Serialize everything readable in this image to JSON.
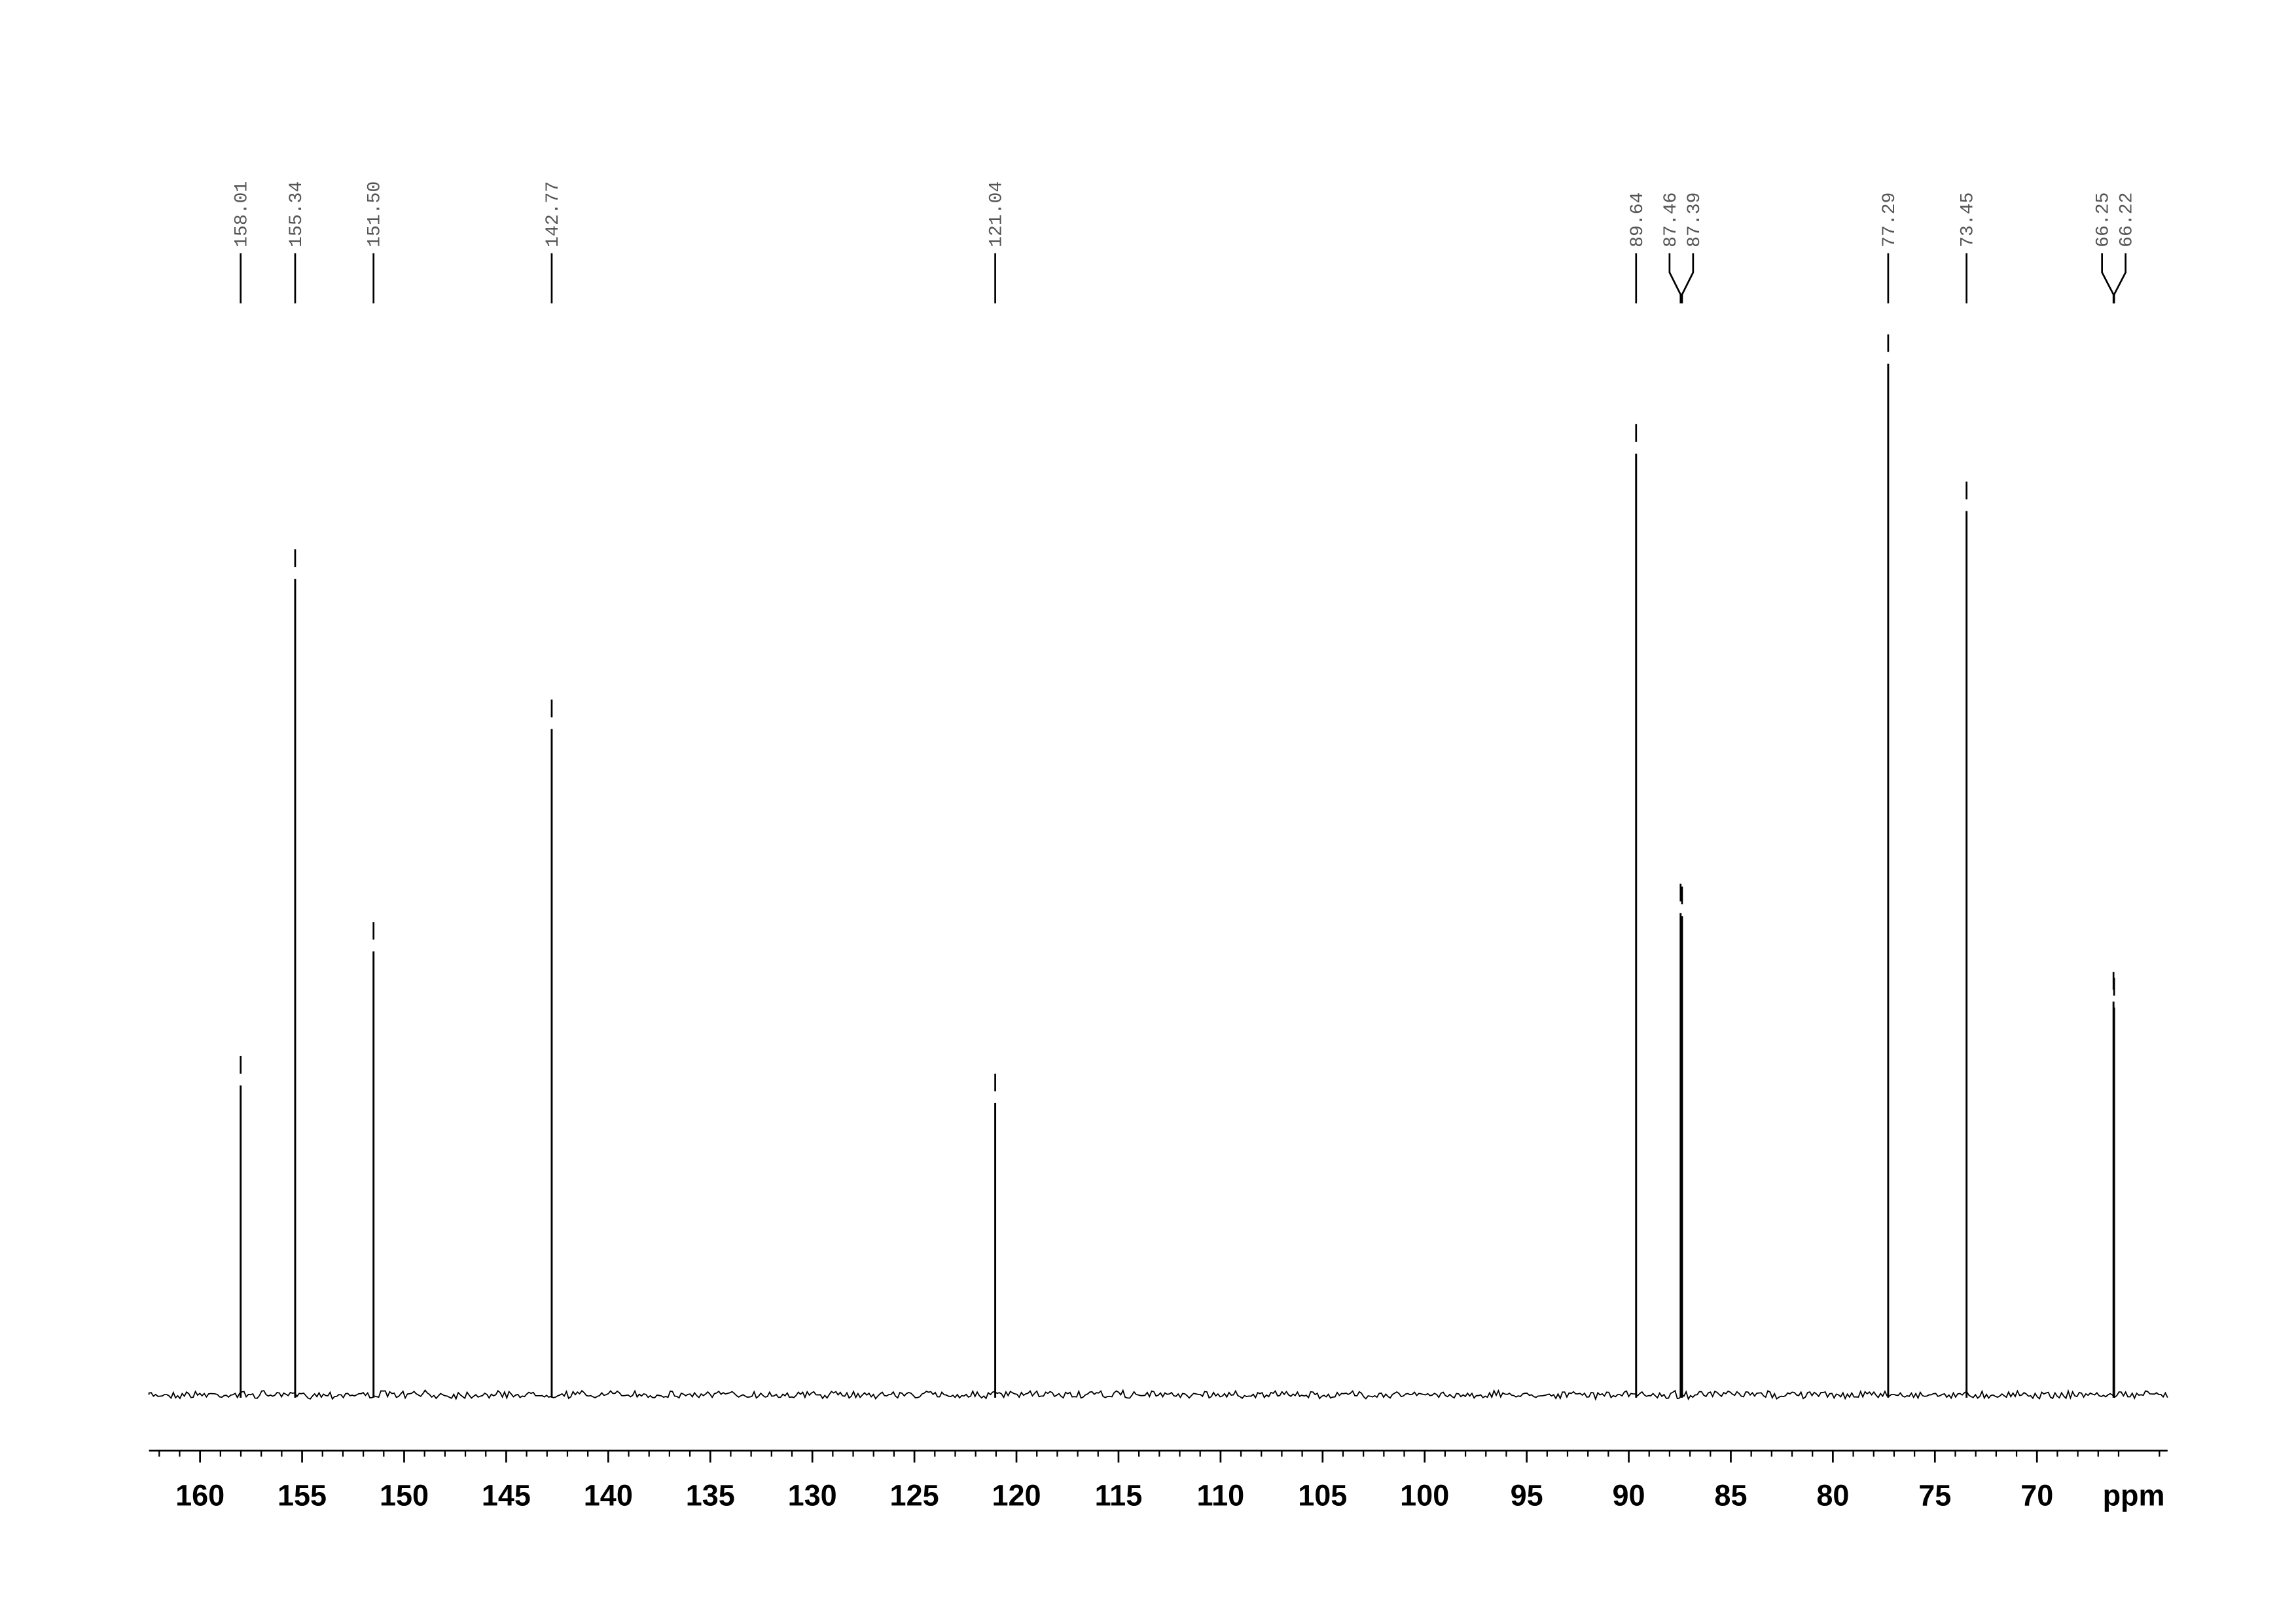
{
  "chart_data": {
    "type": "spectrum",
    "x_label": "ppm",
    "x": [
      158.01,
      155.34,
      151.5,
      142.77,
      121.04,
      89.64,
      87.46,
      87.39,
      77.29,
      73.45,
      66.25,
      66.22
    ],
    "peak_labels": [
      "158.01",
      "155.34",
      "151.50",
      "142.77",
      "121.04",
      "89.64",
      "87.46",
      "87.39",
      "77.29",
      "73.45",
      "66.25",
      "66.22"
    ],
    "values": [
      210,
      554,
      301,
      452,
      198,
      639,
      327,
      325,
      700,
      600,
      267,
      263
    ],
    "color": "#000000",
    "xlim": [
      162.5,
      63.6
    ],
    "xticks": [
      160,
      155,
      150,
      145,
      140,
      135,
      130,
      125,
      120,
      115,
      110,
      105,
      100,
      95,
      90,
      85,
      80,
      75,
      70
    ],
    "xminorticks": [
      162,
      161,
      159,
      158,
      157,
      156,
      154,
      153,
      152,
      151,
      149,
      148,
      147,
      146,
      144,
      143,
      142,
      141,
      139,
      138,
      137,
      136,
      134,
      133,
      132,
      131,
      129,
      128,
      127,
      126,
      124,
      123,
      122,
      121,
      119,
      118,
      117,
      116,
      114,
      113,
      112,
      111,
      109,
      108,
      107,
      106,
      104,
      103,
      102,
      101,
      99,
      98,
      97,
      96,
      94,
      93,
      92,
      91,
      89,
      88,
      87,
      86,
      84,
      83,
      82,
      81,
      79,
      78,
      77,
      76,
      74,
      73,
      72,
      71,
      69,
      68,
      67,
      66,
      64
    ]
  }
}
